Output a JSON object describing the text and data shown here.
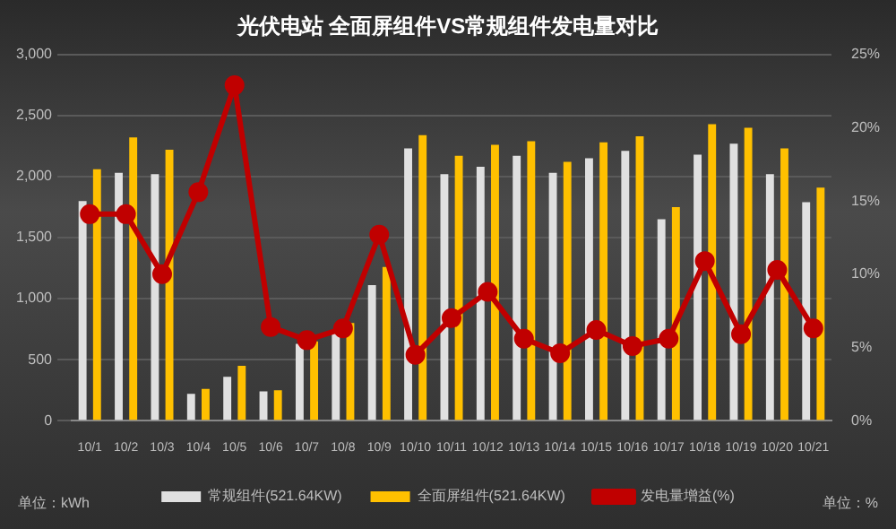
{
  "chart_data": {
    "type": "bar",
    "title": "光伏电站 全面屏组件VS常规组件发电量对比",
    "categories": [
      "10/1",
      "10/2",
      "10/3",
      "10/4",
      "10/5",
      "10/6",
      "10/7",
      "10/8",
      "10/9",
      "10/10",
      "10/11",
      "10/12",
      "10/13",
      "10/14",
      "10/15",
      "10/16",
      "10/17",
      "10/18",
      "10/19",
      "10/20",
      "10/21"
    ],
    "series": [
      {
        "name": "常规组件(521.64KW)",
        "color": "#e0e0e0",
        "values": [
          1800,
          2030,
          2020,
          220,
          360,
          240,
          630,
          720,
          1110,
          2230,
          2020,
          2080,
          2170,
          2030,
          2150,
          2210,
          1650,
          2180,
          2270,
          2020,
          1790
        ]
      },
      {
        "name": "全面屏组件(521.64KW)",
        "color": "#ffc000",
        "values": [
          2060,
          2320,
          2220,
          260,
          450,
          250,
          650,
          800,
          1260,
          2340,
          2170,
          2260,
          2290,
          2120,
          2280,
          2330,
          1750,
          2430,
          2400,
          2230,
          1910
        ]
      },
      {
        "name": "发电量增益(%)",
        "type": "line",
        "axis": "y2",
        "color": "#c00000",
        "values": [
          14.1,
          14.1,
          10.0,
          15.6,
          22.9,
          6.4,
          5.5,
          6.3,
          12.7,
          4.5,
          7.0,
          8.8,
          5.6,
          4.6,
          6.2,
          5.1,
          5.6,
          10.9,
          5.9,
          10.3,
          6.3
        ]
      }
    ],
    "ylim": [
      0,
      3000
    ],
    "yticks": [
      {
        "value": 0,
        "label": "0"
      },
      {
        "value": 500,
        "label": "500"
      },
      {
        "value": 1000,
        "label": "1,000"
      },
      {
        "value": 1500,
        "label": "1,500"
      },
      {
        "value": 2000,
        "label": "2,000"
      },
      {
        "value": 2500,
        "label": "2,500"
      },
      {
        "value": 3000,
        "label": "3,000"
      }
    ],
    "y2lim": [
      0,
      25
    ],
    "y2ticks": [
      {
        "value": 0,
        "label": "0%"
      },
      {
        "value": 5,
        "label": "5%"
      },
      {
        "value": 10,
        "label": "10%"
      },
      {
        "value": 15,
        "label": "15%"
      },
      {
        "value": 20,
        "label": "20%"
      },
      {
        "value": 25,
        "label": "25%"
      }
    ],
    "annotations": [
      "单位：kWh",
      "单位：%"
    ],
    "grid": "y",
    "legend": "bottom",
    "marker": "circle",
    "line_style": "solid"
  }
}
